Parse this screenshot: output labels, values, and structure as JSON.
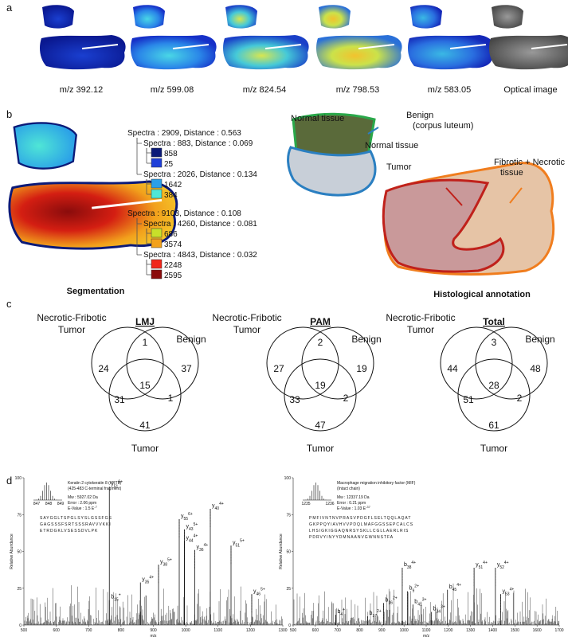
{
  "panel_a": {
    "label": "a",
    "captions": [
      "m/z 392.12",
      "m/z 599.08",
      "m/z 824.54",
      "m/z 798.53",
      "m/z 583.05",
      "Optical image"
    ]
  },
  "panel_b": {
    "label": "b",
    "segmentation_caption": "Segmentation",
    "histology_caption": "Histological annotation",
    "dendrogram": [
      {
        "text": "Spectra : 2909, Distance : 0.563",
        "children": [
          {
            "text": "Spectra : 883, Distance : 0.069",
            "leaves": [
              {
                "label": 858,
                "color": "#0b1a78"
              },
              {
                "label": 25,
                "color": "#1f3fd8"
              }
            ]
          },
          {
            "text": "Spectra : 2026, Distance : 0.134",
            "leaves": [
              {
                "label": 1642,
                "color": "#2a9fe8"
              },
              {
                "label": 384,
                "color": "#4fe6d6"
              }
            ]
          }
        ]
      },
      {
        "text": "Spectra : 9103, Distance : 0.108",
        "children": [
          {
            "text": "Spectra : 4260, Distance : 0.081",
            "leaves": [
              {
                "label": 686,
                "color": "#c8e02a"
              },
              {
                "label": 3574,
                "color": "#f2a11c"
              }
            ]
          },
          {
            "text": "Spectra : 4843, Distance : 0.032",
            "leaves": [
              {
                "label": 2248,
                "color": "#f0261a"
              },
              {
                "label": 2595,
                "color": "#8a0c0c"
              }
            ]
          }
        ]
      }
    ],
    "annotations": [
      {
        "lines": [
          "Normal tissue"
        ],
        "color": "#2aa84a"
      },
      {
        "lines": [
          "Benign",
          "(corpus luteum)"
        ],
        "color": "#2a7fc1"
      },
      {
        "lines": [
          "Normal tissue"
        ],
        "color": "#2aa84a"
      },
      {
        "lines": [
          "Tumor"
        ],
        "color": "#c0211b"
      },
      {
        "lines": [
          "Fibrotic + Necrotic",
          "tissue"
        ],
        "color": "#f07d1e"
      }
    ]
  },
  "panel_c": {
    "label": "c",
    "venns": [
      {
        "title": "LMJ",
        "set_a": [
          "Necrotic-Fribotic",
          "Tumor"
        ],
        "set_b": "Benign",
        "set_c": "Tumor",
        "regions": {
          "a": 24,
          "ab": 1,
          "b": 37,
          "abc": 15,
          "ac": 31,
          "bc": 1,
          "c": 41
        }
      },
      {
        "title": "PAM",
        "set_a": [
          "Necrotic-Fribotic",
          "Tumor"
        ],
        "set_b": "Benign",
        "set_c": "Tumor",
        "regions": {
          "a": 27,
          "ab": 2,
          "b": 19,
          "abc": 19,
          "ac": 33,
          "bc": 2,
          "c": 47
        }
      },
      {
        "title": "Total",
        "set_a": [
          "Necrotic-Fribotic",
          "Tumor"
        ],
        "set_b": "Benign",
        "set_c": "Tumor",
        "regions": {
          "a": 44,
          "ab": 3,
          "b": 48,
          "abc": 28,
          "ac": 51,
          "bc": 2,
          "c": 61
        }
      }
    ]
  },
  "panel_d": {
    "label": "d",
    "spectra": [
      {
        "protein": [
          "Keratin 2 cytokeratin 8 (KRT8)",
          "(425-483 C-terminal fragment)"
        ],
        "mw": "Mw : 5927.02 Da",
        "error": "Error : 2.06 ppm",
        "evalue": "E-Value : 1.5 E",
        "evalue_exp": "-7",
        "sequence": [
          "SAYGGLTSPGLSYSLGSSFGS",
          "GAGSSSFSRTSSSRAVVVKKI",
          "ETRDGKLVSESSDVLPK"
        ],
        "inset_ticks": [
          847,
          848,
          849
        ],
        "xlim": [
          500,
          1300
        ],
        "xticks": [
          500,
          600,
          700,
          800,
          900,
          1000,
          1100,
          1200,
          1300
        ],
        "ylim": [
          0,
          100
        ],
        "yticks": [
          0,
          25,
          50,
          75,
          100
        ],
        "ylabel": "Relative Abundance",
        "xlabel": "m/z",
        "peaks": [
          {
            "ion": "y",
            "n": "51",
            "z": "6+"
          },
          {
            "ion": "y",
            "n": "40",
            "z": "4+"
          },
          {
            "ion": "y",
            "n": "55",
            "z": "6+"
          },
          {
            "ion": "y",
            "n": "43",
            "z": "5+"
          },
          {
            "ion": "y",
            "n": "44",
            "z": "4+"
          },
          {
            "ion": "y",
            "n": "36",
            "z": "4+"
          },
          {
            "ion": "y",
            "n": "51",
            "z": "5+"
          },
          {
            "ion": "y",
            "n": "38",
            "z": "5+"
          },
          {
            "ion": "y",
            "n": "35",
            "z": "4+"
          },
          {
            "ion": "y",
            "n": "46",
            "z": "5+"
          },
          {
            "ion": "b",
            "n": "15",
            "z": "+"
          }
        ]
      },
      {
        "protein": [
          "Macrophage migration inhibitory factor (MIF)",
          "(Intact chain)"
        ],
        "mw": "Mw : 12337.19 Da",
        "error": "Error : 0.21 ppm",
        "evalue": "E-Value : 1.03 E",
        "evalue_exp": "-37",
        "sequence": [
          "PMFIVNTNVPRASVPDGFLSELTQQLAQAT",
          "GKPPQYIAVHVVPDQLMAFGGSSEPCALCS",
          "LHSIGKIGGAQNRSYSKLLCGLLAERLRIS",
          "PDRVYINYYDMNAANVGWNNSTFA"
        ],
        "inset_ticks": [
          1235,
          1236
        ],
        "xlim": [
          500,
          1700
        ],
        "xticks": [
          500,
          600,
          700,
          800,
          900,
          1000,
          1100,
          1200,
          1300,
          1400,
          1500,
          1600,
          1700
        ],
        "ylim": [
          0,
          100
        ],
        "yticks": [
          0,
          25,
          50,
          75,
          100
        ],
        "ylabel": "Relative Abundance",
        "xlabel": "m/z",
        "peaks": [
          {
            "ion": "y",
            "n": "51",
            "z": "4+"
          },
          {
            "ion": "y",
            "n": "52",
            "z": "4+"
          },
          {
            "ion": "y",
            "n": "53",
            "z": "4+"
          },
          {
            "ion": "b",
            "n": "45",
            "z": "4+"
          },
          {
            "ion": "b",
            "n": "38",
            "z": "4+"
          },
          {
            "ion": "b",
            "n": "9",
            "z": "2+"
          },
          {
            "ion": "b",
            "n": "41",
            "z": "3+"
          },
          {
            "ion": "b",
            "n": "34",
            "z": "3+"
          },
          {
            "ion": "b",
            "n": "4",
            "z": "+"
          },
          {
            "ion": "b",
            "n": "16",
            "z": "2+"
          },
          {
            "ion": "b",
            "n": "17",
            "z": "2+"
          }
        ]
      }
    ]
  }
}
